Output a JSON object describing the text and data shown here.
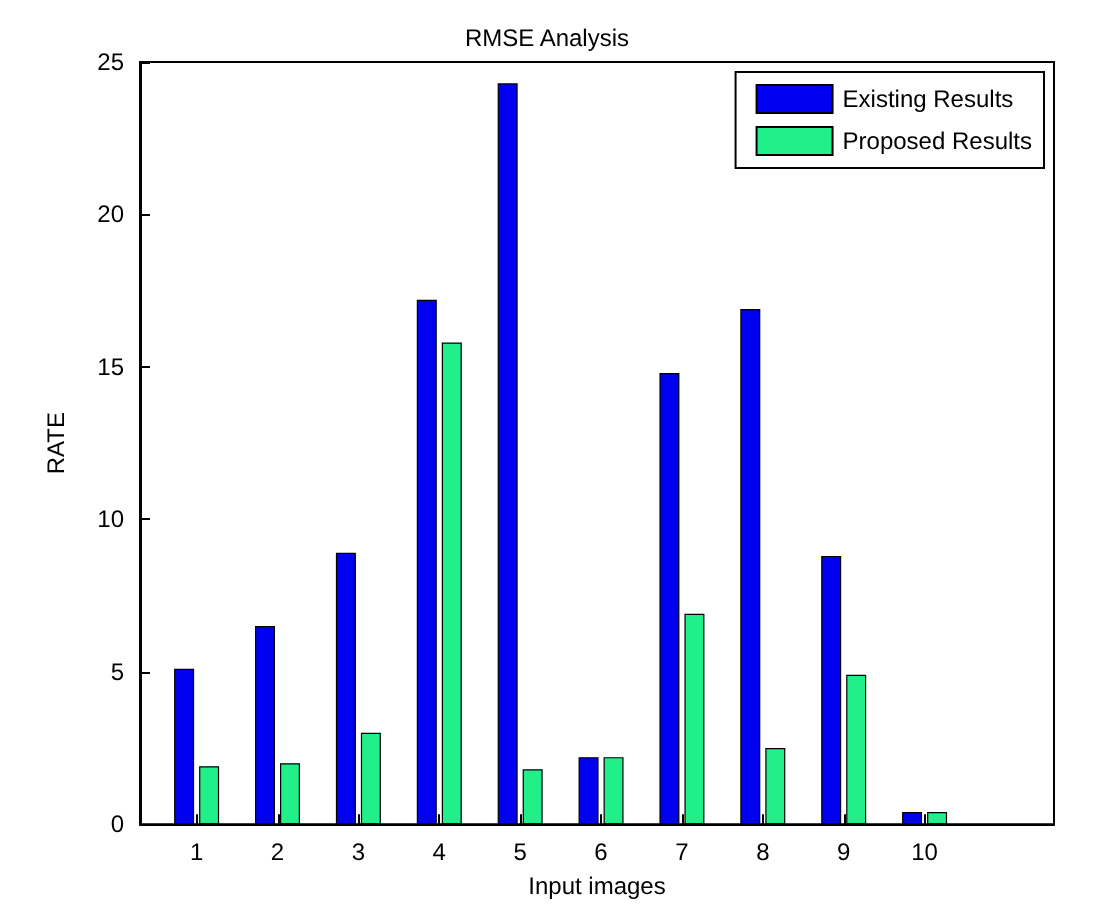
{
  "chart_data": {
    "type": "bar",
    "title": "RMSE Analysis",
    "xlabel": "Input images",
    "ylabel": "RATE",
    "x": [
      1,
      2,
      3,
      4,
      5,
      6,
      7,
      8,
      9,
      10
    ],
    "series": [
      {
        "name": "Existing Results",
        "color": "#0000f0",
        "values": [
          5.1,
          6.5,
          8.9,
          17.2,
          24.3,
          2.2,
          14.8,
          16.9,
          8.8,
          0.4
        ]
      },
      {
        "name": "Proposed Results",
        "color": "#21f08a",
        "values": [
          1.9,
          2.0,
          3.0,
          15.8,
          1.8,
          2.2,
          6.9,
          2.5,
          4.9,
          0.4
        ]
      }
    ],
    "xlim": [
      0.3,
      11.6
    ],
    "xticks": [
      1,
      2,
      3,
      4,
      5,
      6,
      7,
      8,
      9,
      10
    ],
    "ylim": [
      0,
      25
    ],
    "yticks": [
      0,
      5,
      10,
      15,
      20,
      25
    ],
    "grid": false,
    "legend": "top right"
  }
}
